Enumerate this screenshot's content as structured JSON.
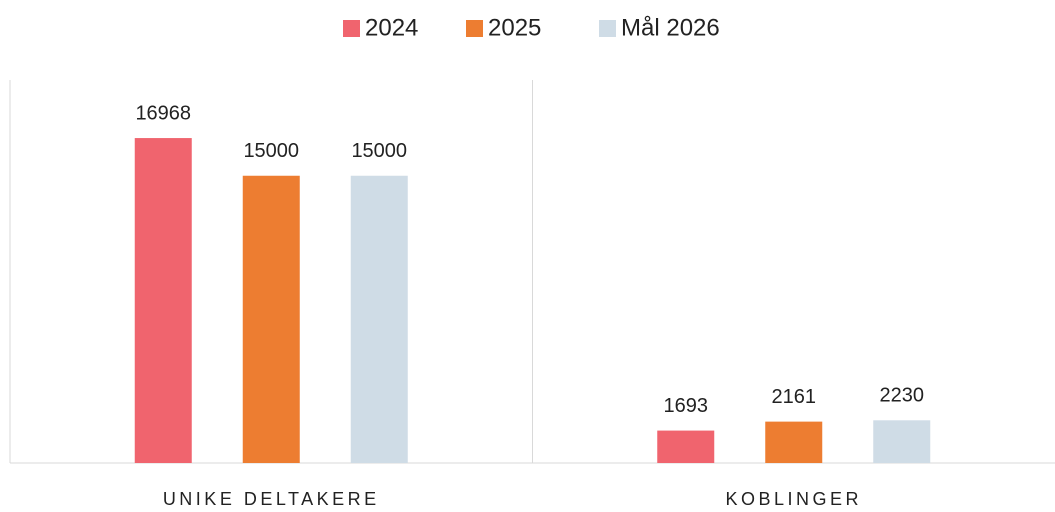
{
  "chart_data": {
    "type": "bar",
    "categories": [
      "UNIKE DELTAKERE",
      "KOBLINGER"
    ],
    "series": [
      {
        "name": "2024",
        "color": "#f0646e",
        "values": [
          16968,
          1693
        ]
      },
      {
        "name": "2025",
        "color": "#ed7d31",
        "values": [
          15000,
          2161
        ]
      },
      {
        "name": "Mål 2026",
        "color": "#cfdce6",
        "values": [
          15000,
          2230
        ]
      }
    ],
    "ylim": [
      0,
      20000
    ],
    "legend": "top"
  }
}
